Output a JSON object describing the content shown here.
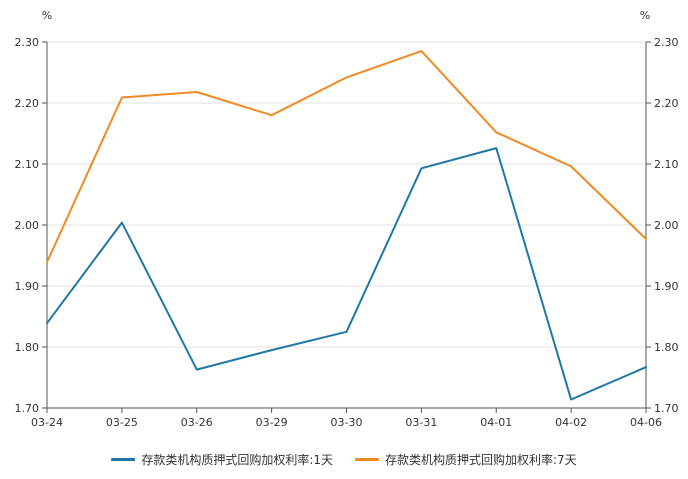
{
  "chart_data": {
    "type": "line",
    "title": "",
    "y_unit_left": "%",
    "y_unit_right": "%",
    "categories": [
      "03-24",
      "03-25",
      "03-26",
      "03-29",
      "03-30",
      "03-31",
      "04-01",
      "04-02",
      "04-06"
    ],
    "ylim": [
      1.7,
      2.3
    ],
    "yticks": [
      "1.70",
      "1.80",
      "1.90",
      "2.00",
      "2.10",
      "2.20",
      "2.30"
    ],
    "grid": true,
    "legend_position": "bottom-center",
    "series": [
      {
        "name": "存款类机构质押式回购加权利率:1天",
        "color": "#1f77a4",
        "values": [
          1.839,
          2.004,
          1.763,
          1.795,
          1.825,
          2.093,
          2.126,
          1.714,
          1.767
        ]
      },
      {
        "name": "存款类机构质押式回购加权利率:7天",
        "color": "#f08a24",
        "values": [
          1.939,
          2.209,
          2.218,
          2.18,
          2.242,
          2.285,
          2.152,
          2.096,
          1.977
        ]
      }
    ]
  }
}
